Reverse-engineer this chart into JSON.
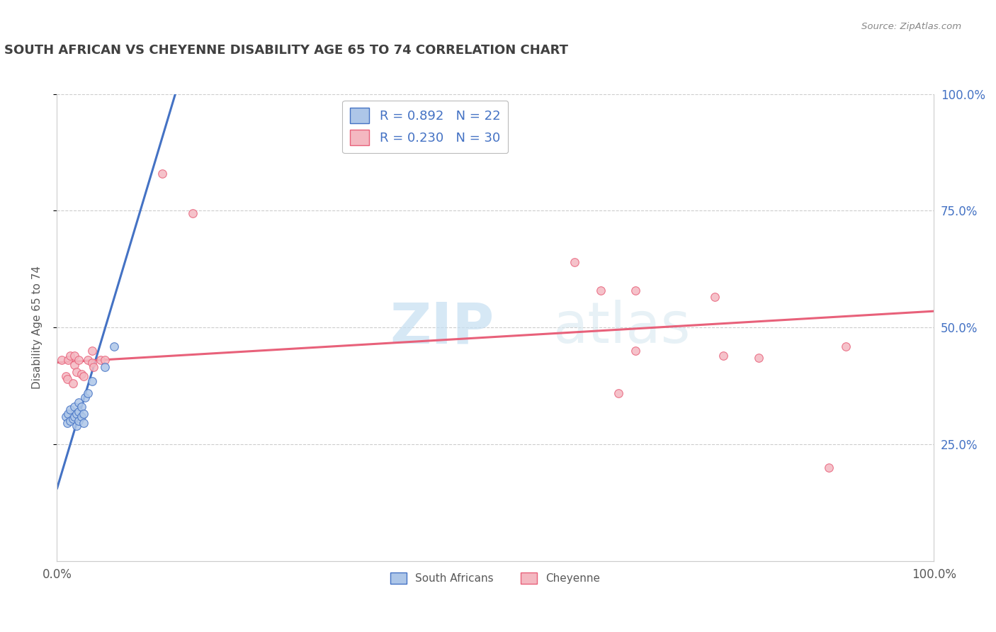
{
  "title": "SOUTH AFRICAN VS CHEYENNE DISABILITY AGE 65 TO 74 CORRELATION CHART",
  "source": "Source: ZipAtlas.com",
  "ylabel": "Disability Age 65 to 74",
  "xlim": [
    0.0,
    1.0
  ],
  "ylim": [
    0.0,
    1.0
  ],
  "south_african_scatter": [
    [
      0.01,
      0.31
    ],
    [
      0.012,
      0.295
    ],
    [
      0.013,
      0.315
    ],
    [
      0.015,
      0.3
    ],
    [
      0.015,
      0.325
    ],
    [
      0.018,
      0.305
    ],
    [
      0.02,
      0.31
    ],
    [
      0.02,
      0.33
    ],
    [
      0.022,
      0.29
    ],
    [
      0.022,
      0.315
    ],
    [
      0.025,
      0.3
    ],
    [
      0.025,
      0.32
    ],
    [
      0.025,
      0.34
    ],
    [
      0.028,
      0.31
    ],
    [
      0.028,
      0.33
    ],
    [
      0.03,
      0.295
    ],
    [
      0.03,
      0.315
    ],
    [
      0.032,
      0.35
    ],
    [
      0.035,
      0.36
    ],
    [
      0.04,
      0.385
    ],
    [
      0.055,
      0.415
    ],
    [
      0.065,
      0.46
    ]
  ],
  "cheyenne_scatter": [
    [
      0.005,
      0.43
    ],
    [
      0.01,
      0.395
    ],
    [
      0.012,
      0.39
    ],
    [
      0.013,
      0.43
    ],
    [
      0.015,
      0.44
    ],
    [
      0.018,
      0.38
    ],
    [
      0.02,
      0.42
    ],
    [
      0.02,
      0.44
    ],
    [
      0.022,
      0.405
    ],
    [
      0.025,
      0.43
    ],
    [
      0.028,
      0.4
    ],
    [
      0.03,
      0.395
    ],
    [
      0.035,
      0.43
    ],
    [
      0.04,
      0.425
    ],
    [
      0.04,
      0.45
    ],
    [
      0.042,
      0.415
    ],
    [
      0.05,
      0.43
    ],
    [
      0.055,
      0.43
    ],
    [
      0.12,
      0.83
    ],
    [
      0.155,
      0.745
    ],
    [
      0.59,
      0.64
    ],
    [
      0.62,
      0.58
    ],
    [
      0.64,
      0.36
    ],
    [
      0.66,
      0.45
    ],
    [
      0.66,
      0.58
    ],
    [
      0.75,
      0.565
    ],
    [
      0.76,
      0.44
    ],
    [
      0.8,
      0.435
    ],
    [
      0.88,
      0.2
    ],
    [
      0.9,
      0.46
    ]
  ],
  "sa_line_x": [
    0.0,
    0.135
  ],
  "sa_line_y": [
    0.155,
    1.0
  ],
  "chey_line_x": [
    0.0,
    1.0
  ],
  "chey_line_y": [
    0.425,
    0.535
  ],
  "sa_line_color": "#4472c4",
  "chey_line_color": "#e8617a",
  "sa_scatter_color": "#adc6e8",
  "chey_scatter_color": "#f4b8c1",
  "background_color": "#ffffff",
  "grid_color": "#c8c8c8",
  "title_color": "#404040",
  "axis_label_color": "#595959",
  "right_ytick_labels": [
    "25.0%",
    "50.0%",
    "75.0%",
    "100.0%"
  ],
  "right_ytick_color": "#4472c4",
  "right_ytick_positions": [
    0.25,
    0.5,
    0.75,
    1.0
  ],
  "watermark_text": "ZIPatlas",
  "legend_label_color": "#4472c4"
}
